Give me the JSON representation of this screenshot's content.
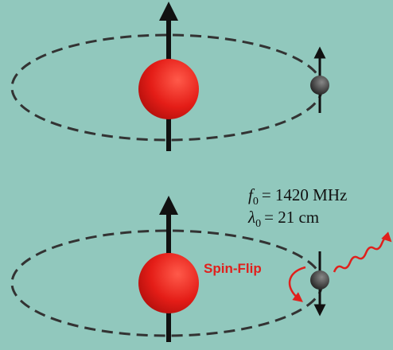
{
  "annotations": {
    "frequency": {
      "symbol": "f",
      "subscript": "0",
      "text": "= 1420 MHz"
    },
    "wavelength": {
      "symbol": "λ",
      "subscript": "0",
      "text": "= 21 cm"
    },
    "transition": "Spin-Flip"
  }
}
